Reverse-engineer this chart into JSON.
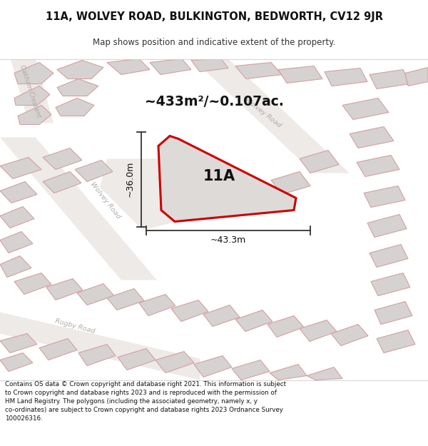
{
  "title": "11A, WOLVEY ROAD, BULKINGTON, BEDWORTH, CV12 9JR",
  "subtitle": "Map shows position and indicative extent of the property.",
  "area_label": "~433m²/~0.107ac.",
  "plot_label": "11A",
  "width_label": "~43.3m",
  "height_label": "~36.0m",
  "footer": "Contains OS data © Crown copyright and database right 2021. This information is subject to Crown copyright and database rights 2023 and is reproduced with the permission of HM Land Registry. The polygons (including the associated geometry, namely x, y co-ordinates) are subject to Crown copyright and database rights 2023 Ordnance Survey 100026316.",
  "map_bg": "#f2efef",
  "plot_fill": "#dedad8",
  "plot_outline": "#cc0000",
  "building_fill": "#d6d2d2",
  "building_outline": "#d4a0a0",
  "road_fill": "#e8e4e2",
  "title_color": "#111111",
  "footer_color": "#111111",
  "dim_color": "#333333",
  "road_label_color": "#b0aaaa",
  "subtitle_color": "#333333"
}
